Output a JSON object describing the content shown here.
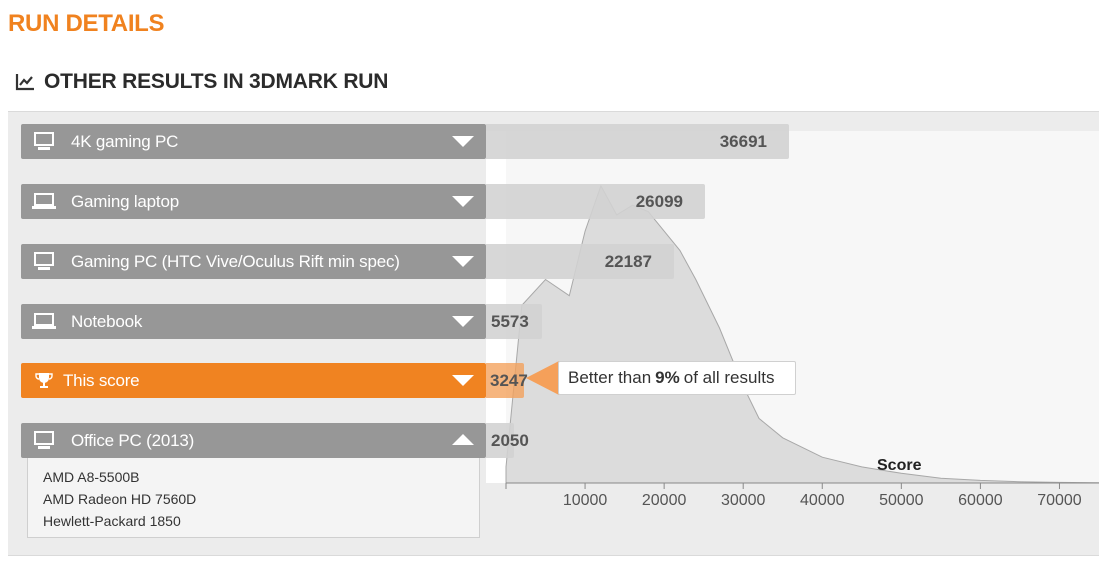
{
  "page": {
    "title": "RUN DETAILS"
  },
  "section": {
    "title": "OTHER RESULTS IN 3DMARK RUN",
    "icon": "line-chart-icon"
  },
  "colors": {
    "accent": "#f08321",
    "row_bg": "#979797",
    "title": "#f0821f"
  },
  "rows": [
    {
      "label": "4K gaming PC",
      "score": "36691",
      "icon": "desktop-icon",
      "expanded": false
    },
    {
      "label": "Gaming laptop",
      "score": "26099",
      "icon": "laptop-icon",
      "expanded": false
    },
    {
      "label": "Gaming PC (HTC Vive/Oculus Rift min spec)",
      "score": "22187",
      "icon": "desktop-icon",
      "expanded": false
    },
    {
      "label": "Notebook",
      "score": "5573",
      "icon": "laptop-icon",
      "expanded": false
    },
    {
      "label": "This score",
      "score": "3247",
      "icon": "trophy-icon",
      "expanded": false,
      "highlight": true
    },
    {
      "label": "Office PC (2013)",
      "score": "2050",
      "icon": "desktop-icon",
      "expanded": true
    }
  ],
  "details": {
    "cpu": "AMD A8-5500B",
    "gpu": "AMD Radeon HD 7560D",
    "system": "Hewlett-Packard 1850"
  },
  "callout": {
    "prefix": "Better than",
    "percent": "9%",
    "suffix": "of all results"
  },
  "chart_data": {
    "type": "area",
    "xlabel": "Score",
    "ylabel": "",
    "xlim": [
      0,
      75000
    ],
    "x_ticks": [
      "10000",
      "20000",
      "30000",
      "40000",
      "50000",
      "60000",
      "70000"
    ],
    "series": [
      {
        "x": [
          0,
          2000,
          5000,
          8000,
          10000,
          12000,
          14000,
          16000,
          18000,
          20000,
          22000,
          24000,
          27000,
          30000,
          32000,
          35000,
          40000,
          45000,
          50000,
          55000,
          60000,
          65000,
          70000,
          75000
        ],
        "y": [
          0.05,
          0.55,
          0.63,
          0.58,
          0.78,
          0.92,
          0.83,
          0.86,
          0.84,
          0.78,
          0.72,
          0.63,
          0.48,
          0.3,
          0.2,
          0.14,
          0.08,
          0.05,
          0.03,
          0.015,
          0.008,
          0.004,
          0.002,
          0.001
        ]
      }
    ]
  }
}
